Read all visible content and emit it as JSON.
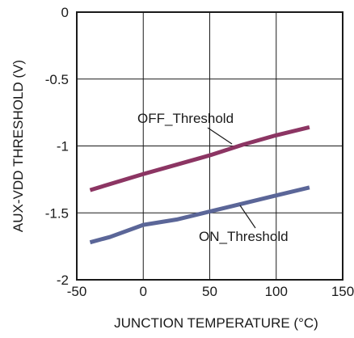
{
  "chart_data": {
    "type": "line",
    "xlabel": "JUNCTION TEMPERATURE (°C)",
    "ylabel": "AUX-VDD THRESHOLD (V)",
    "xlim": [
      -50,
      150
    ],
    "ylim": [
      -2,
      0
    ],
    "x_ticks": [
      -50,
      0,
      50,
      100,
      150
    ],
    "y_ticks": [
      0,
      -0.5,
      -1,
      -1.5,
      -2
    ],
    "x_tick_labels": [
      "-50",
      "0",
      "50",
      "100",
      "150"
    ],
    "y_tick_labels": [
      "0",
      "-0.5",
      "-1",
      "-1.5",
      "-2"
    ],
    "grid": true,
    "series": [
      {
        "name": "OFF_Threshold",
        "color": "#8c3563",
        "x": [
          -40,
          0,
          25,
          50,
          75,
          100,
          125
        ],
        "y": [
          -1.33,
          -1.21,
          -1.14,
          -1.07,
          -0.99,
          -0.92,
          -0.86
        ]
      },
      {
        "name": "ON_Threshold",
        "color": "#5b6698",
        "x": [
          -40,
          -25,
          0,
          25,
          50,
          75,
          100,
          125
        ],
        "y": [
          -1.72,
          -1.68,
          -1.59,
          -1.55,
          -1.49,
          -1.43,
          -1.37,
          -1.31
        ]
      }
    ]
  }
}
